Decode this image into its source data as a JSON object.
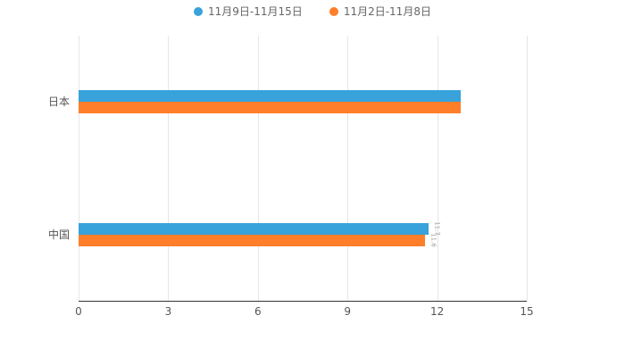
{
  "chart_data": {
    "type": "bar",
    "orientation": "horizontal",
    "title": "",
    "categories": [
      "日本",
      "中国"
    ],
    "series": [
      {
        "name": "11月9日-11月15日",
        "color": "#38A2DB",
        "values": [
          12.8,
          11.7
        ],
        "value_labels": [
          "",
          "11.7"
        ]
      },
      {
        "name": "11月2日-11月8日",
        "color": "#FF7E29",
        "values": [
          12.8,
          11.6
        ],
        "value_labels": [
          "",
          "11.6"
        ]
      }
    ],
    "xlim": [
      0,
      15
    ],
    "xticks": [
      0,
      3,
      6,
      9,
      12,
      15
    ],
    "grid": true,
    "legend_position": "top",
    "background": "#ffffff",
    "axis_line_color": "#333333",
    "gridline_color": "#e6e6e6"
  }
}
